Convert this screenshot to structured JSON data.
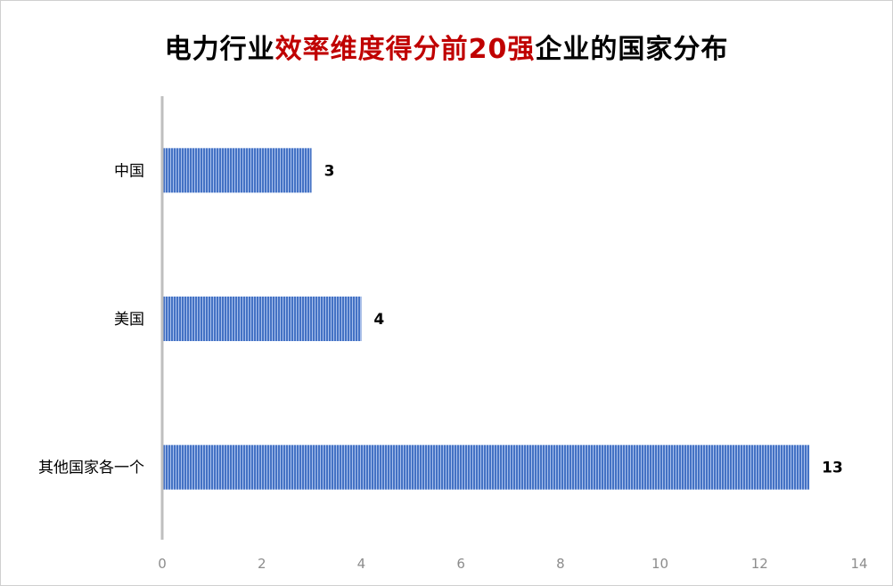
{
  "chart_data": {
    "type": "bar",
    "orientation": "horizontal",
    "title_parts": [
      "电力行业",
      "效率维度得分前20强",
      "企业的国家分布"
    ],
    "categories": [
      "中国",
      "美国",
      "其他国家各一个"
    ],
    "values": [
      3,
      4,
      13
    ],
    "data_labels": [
      "3",
      "4",
      "13"
    ],
    "xlim": [
      0,
      14
    ],
    "x_ticks": [
      0,
      2,
      4,
      6,
      8,
      10,
      12,
      14
    ],
    "grid": false,
    "legend": "none",
    "colors": {
      "bar": "#4472c4",
      "bar_stripe": "#a9c0ec",
      "title_highlight": "#c00000",
      "axis": "#bfbfbf"
    }
  }
}
